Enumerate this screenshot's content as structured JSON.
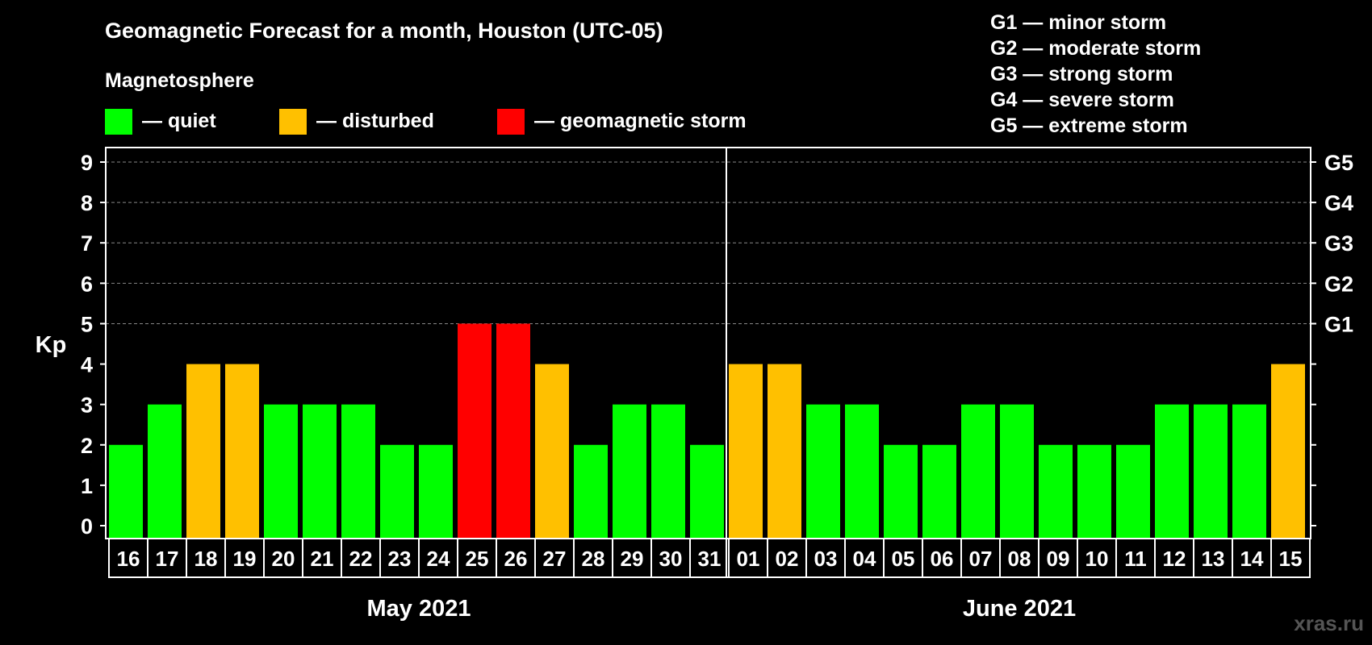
{
  "chart_data": {
    "type": "bar",
    "title": "Geomagnetic Forecast for a month, Houston (UTC-05)",
    "ylabel": "Kp",
    "ylim": [
      0,
      9
    ],
    "yticks": [
      0,
      1,
      2,
      3,
      4,
      5,
      6,
      7,
      8,
      9
    ],
    "storm_levels": [
      {
        "kp": 5,
        "label": "G1"
      },
      {
        "kp": 6,
        "label": "G2"
      },
      {
        "kp": 7,
        "label": "G3"
      },
      {
        "kp": 8,
        "label": "G4"
      },
      {
        "kp": 9,
        "label": "G5"
      }
    ],
    "storm_legend": [
      "G1 — minor storm",
      "G2 — moderate storm",
      "G3 — strong storm",
      "G4 — severe storm",
      "G5 — extreme storm"
    ],
    "legend_title": "Magnetosphere",
    "legend": [
      {
        "label": "— quiet",
        "color": "#00ff00"
      },
      {
        "label": "— disturbed",
        "color": "#ffc000"
      },
      {
        "label": "— geomagnetic storm",
        "color": "#ff0000"
      }
    ],
    "categories": [
      "16",
      "17",
      "18",
      "19",
      "20",
      "21",
      "22",
      "23",
      "24",
      "25",
      "26",
      "27",
      "28",
      "29",
      "30",
      "31",
      "01",
      "02",
      "03",
      "04",
      "05",
      "06",
      "07",
      "08",
      "09",
      "10",
      "11",
      "12",
      "13",
      "14",
      "15"
    ],
    "values": [
      2,
      3,
      4,
      4,
      3,
      3,
      3,
      2,
      2,
      5,
      5,
      4,
      2,
      3,
      3,
      2,
      4,
      4,
      3,
      3,
      2,
      2,
      3,
      3,
      2,
      2,
      2,
      3,
      3,
      3,
      4
    ],
    "months": [
      {
        "label": "May 2021",
        "start": 0,
        "count": 16
      },
      {
        "label": "June 2021",
        "start": 16,
        "count": 15
      }
    ],
    "watermark": "xras.ru"
  }
}
